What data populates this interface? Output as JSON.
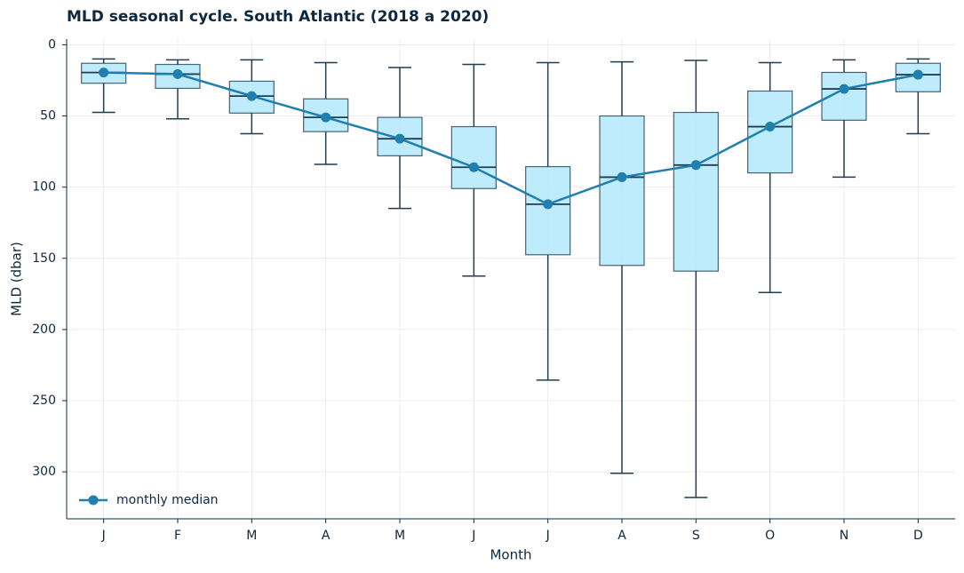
{
  "chart_data": {
    "type": "box",
    "title": "MLD seasonal cycle. South Atlantic (2018 a 2020)",
    "x_label": "Month",
    "y_label": "MLD (dbar)",
    "categories": [
      "J",
      "F",
      "M",
      "A",
      "M",
      "J",
      "J",
      "A",
      "S",
      "O",
      "N",
      "D"
    ],
    "box_stats": {
      "whislo": [
        10,
        10.6,
        10.6,
        12.5,
        16,
        13.8,
        12.5,
        12,
        11,
        12.5,
        10.6,
        10
      ],
      "q1": [
        13,
        13.8,
        25.6,
        38,
        51,
        57.5,
        85.6,
        50,
        47.5,
        32.5,
        19.4,
        13
      ],
      "q3": [
        27,
        30.6,
        48,
        61,
        78,
        101,
        147.5,
        155,
        159,
        90,
        53,
        33
      ],
      "whishi": [
        47.5,
        52,
        62.5,
        84,
        115,
        162.5,
        235.6,
        301,
        318,
        174,
        93,
        62.5
      ]
    },
    "box_color": "#b3e9fb",
    "box_edge_color": "#1f3f50",
    "series": [
      {
        "name": "monthly median",
        "color": "#1f7fae",
        "values": [
          19.5,
          20.6,
          36,
          51,
          66,
          86,
          112,
          93,
          84.5,
          57.5,
          31,
          21
        ]
      }
    ],
    "ylim": [
      -4,
      333
    ],
    "invert_y": true,
    "yticks": [
      0,
      50,
      100,
      150,
      200,
      250,
      300
    ],
    "grid": true,
    "legend": "lower left"
  }
}
